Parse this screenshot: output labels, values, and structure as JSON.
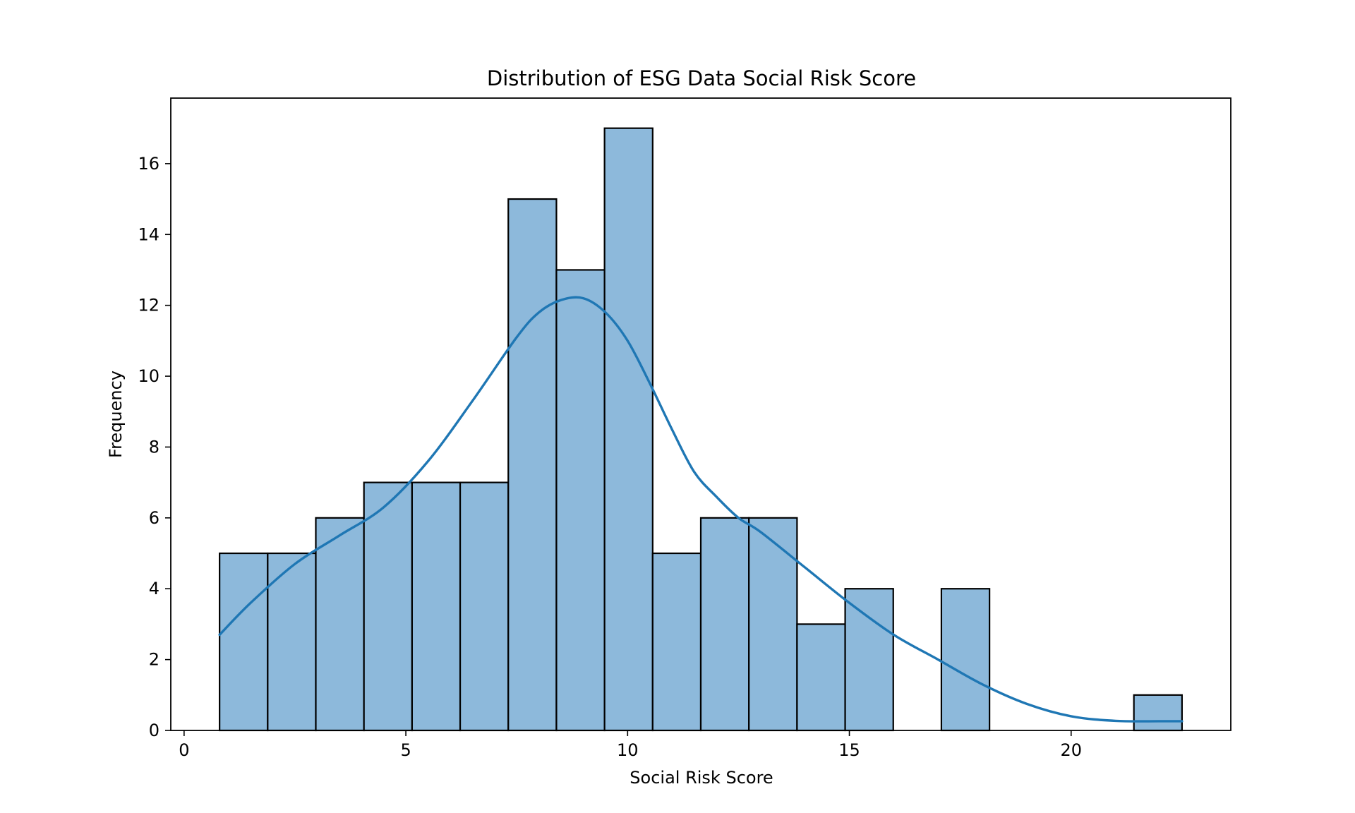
{
  "chart_data": {
    "type": "bar",
    "subtype": "histogram",
    "title": "Distribution of ESG Data Social Risk Score",
    "xlabel": "Social Risk Score",
    "ylabel": "Frequency",
    "xlim": [
      -0.3,
      23.6
    ],
    "ylim": [
      0,
      17.85
    ],
    "x_ticks": [
      0,
      5,
      10,
      15,
      20
    ],
    "y_ticks": [
      0,
      2,
      4,
      6,
      8,
      10,
      12,
      14,
      16
    ],
    "bin_edges": [
      0.8,
      1.885,
      2.97,
      4.055,
      5.14,
      6.225,
      7.31,
      8.395,
      9.48,
      10.565,
      11.65,
      12.735,
      13.82,
      14.905,
      15.99,
      17.075,
      18.16,
      19.245,
      20.33,
      21.415,
      22.5
    ],
    "counts": [
      5,
      5,
      6,
      7,
      7,
      7,
      15,
      13,
      17,
      5,
      6,
      6,
      3,
      4,
      0,
      4,
      0,
      0,
      0,
      1
    ],
    "kde": {
      "x": [
        0.8,
        1.5,
        2.5,
        3.5,
        4.5,
        5.5,
        6.5,
        7.5,
        8.0,
        8.5,
        9.0,
        9.5,
        10.0,
        10.5,
        11.0,
        11.5,
        12.0,
        12.5,
        13.0,
        14.0,
        15.0,
        16.0,
        17.0,
        18.0,
        19.0,
        20.0,
        21.0,
        22.0,
        22.5
      ],
      "y": [
        2.7,
        3.6,
        4.7,
        5.5,
        6.3,
        7.6,
        9.3,
        11.1,
        11.8,
        12.15,
        12.2,
        11.8,
        11.0,
        9.8,
        8.5,
        7.3,
        6.6,
        6.0,
        5.6,
        4.6,
        3.6,
        2.7,
        2.0,
        1.3,
        0.75,
        0.4,
        0.27,
        0.26,
        0.26
      ]
    },
    "colors": {
      "bar_fill": "#8db9db",
      "bar_edge": "#000000",
      "kde_line": "#1f77b4"
    },
    "grid": false,
    "legend": "none"
  }
}
